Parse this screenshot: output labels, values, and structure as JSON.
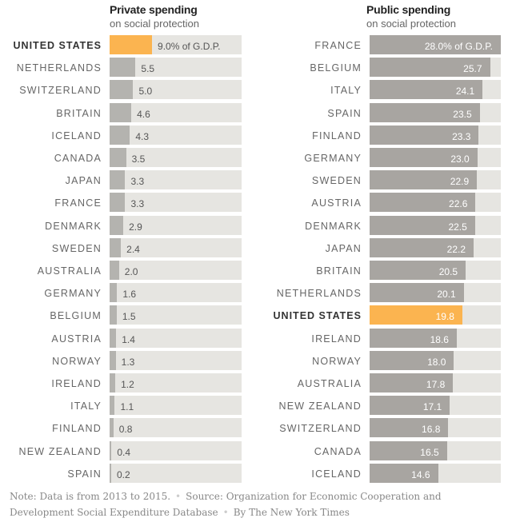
{
  "chart_data": [
    {
      "type": "bar",
      "orientation": "horizontal",
      "title": "Private spending",
      "subtitle": "on social protection",
      "unit_suffix_first": "% of G.D.P.",
      "highlight": "UNITED STATES",
      "highlight_color": "#fbb450",
      "bar_color": "#b4b3af",
      "xlim": [
        0,
        28
      ],
      "categories": [
        "UNITED STATES",
        "NETHERLANDS",
        "SWITZERLAND",
        "BRITAIN",
        "ICELAND",
        "CANADA",
        "JAPAN",
        "FRANCE",
        "DENMARK",
        "SWEDEN",
        "AUSTRALIA",
        "GERMANY",
        "BELGIUM",
        "AUSTRIA",
        "NORWAY",
        "IRELAND",
        "ITALY",
        "FINLAND",
        "NEW ZEALAND",
        "SPAIN"
      ],
      "values": [
        9.0,
        5.5,
        5.0,
        4.6,
        4.3,
        3.5,
        3.3,
        3.3,
        2.9,
        2.4,
        2.0,
        1.6,
        1.5,
        1.4,
        1.3,
        1.2,
        1.1,
        0.8,
        0.4,
        0.2
      ],
      "labels": [
        "9.0% of G.D.P.",
        "5.5",
        "5.0",
        "4.6",
        "4.3",
        "3.5",
        "3.3",
        "3.3",
        "2.9",
        "2.4",
        "2.0",
        "1.6",
        "1.5",
        "1.4",
        "1.3",
        "1.2",
        "1.1",
        "0.8",
        "0.4",
        "0.2"
      ]
    },
    {
      "type": "bar",
      "orientation": "horizontal",
      "title": "Public spending",
      "subtitle": "on social protection",
      "unit_suffix_first": "% of G.D.P.",
      "highlight": "UNITED STATES",
      "highlight_color": "#fbb450",
      "bar_color": "#a8a5a1",
      "xlim": [
        0,
        28
      ],
      "categories": [
        "FRANCE",
        "BELGIUM",
        "ITALY",
        "SPAIN",
        "FINLAND",
        "GERMANY",
        "SWEDEN",
        "AUSTRIA",
        "DENMARK",
        "JAPAN",
        "BRITAIN",
        "NETHERLANDS",
        "UNITED STATES",
        "IRELAND",
        "NORWAY",
        "AUSTRALIA",
        "NEW ZEALAND",
        "SWITZERLAND",
        "CANADA",
        "ICELAND"
      ],
      "values": [
        28.0,
        25.7,
        24.1,
        23.5,
        23.3,
        23.0,
        22.9,
        22.6,
        22.5,
        22.2,
        20.5,
        20.1,
        19.8,
        18.6,
        18.0,
        17.8,
        17.1,
        16.8,
        16.5,
        14.6
      ],
      "labels": [
        "28.0% of G.D.P.",
        "25.7",
        "24.1",
        "23.5",
        "23.3",
        "23.0",
        "22.9",
        "22.6",
        "22.5",
        "22.2",
        "20.5",
        "20.1",
        "19.8",
        "18.6",
        "18.0",
        "17.8",
        "17.1",
        "16.8",
        "16.5",
        "14.6"
      ]
    }
  ],
  "footer": {
    "note": "Note: Data is from 2013 to 2015.",
    "source": "Source: Organization for Economic Cooperation and Development Social Expenditure Database",
    "credit": "By The New York Times"
  }
}
